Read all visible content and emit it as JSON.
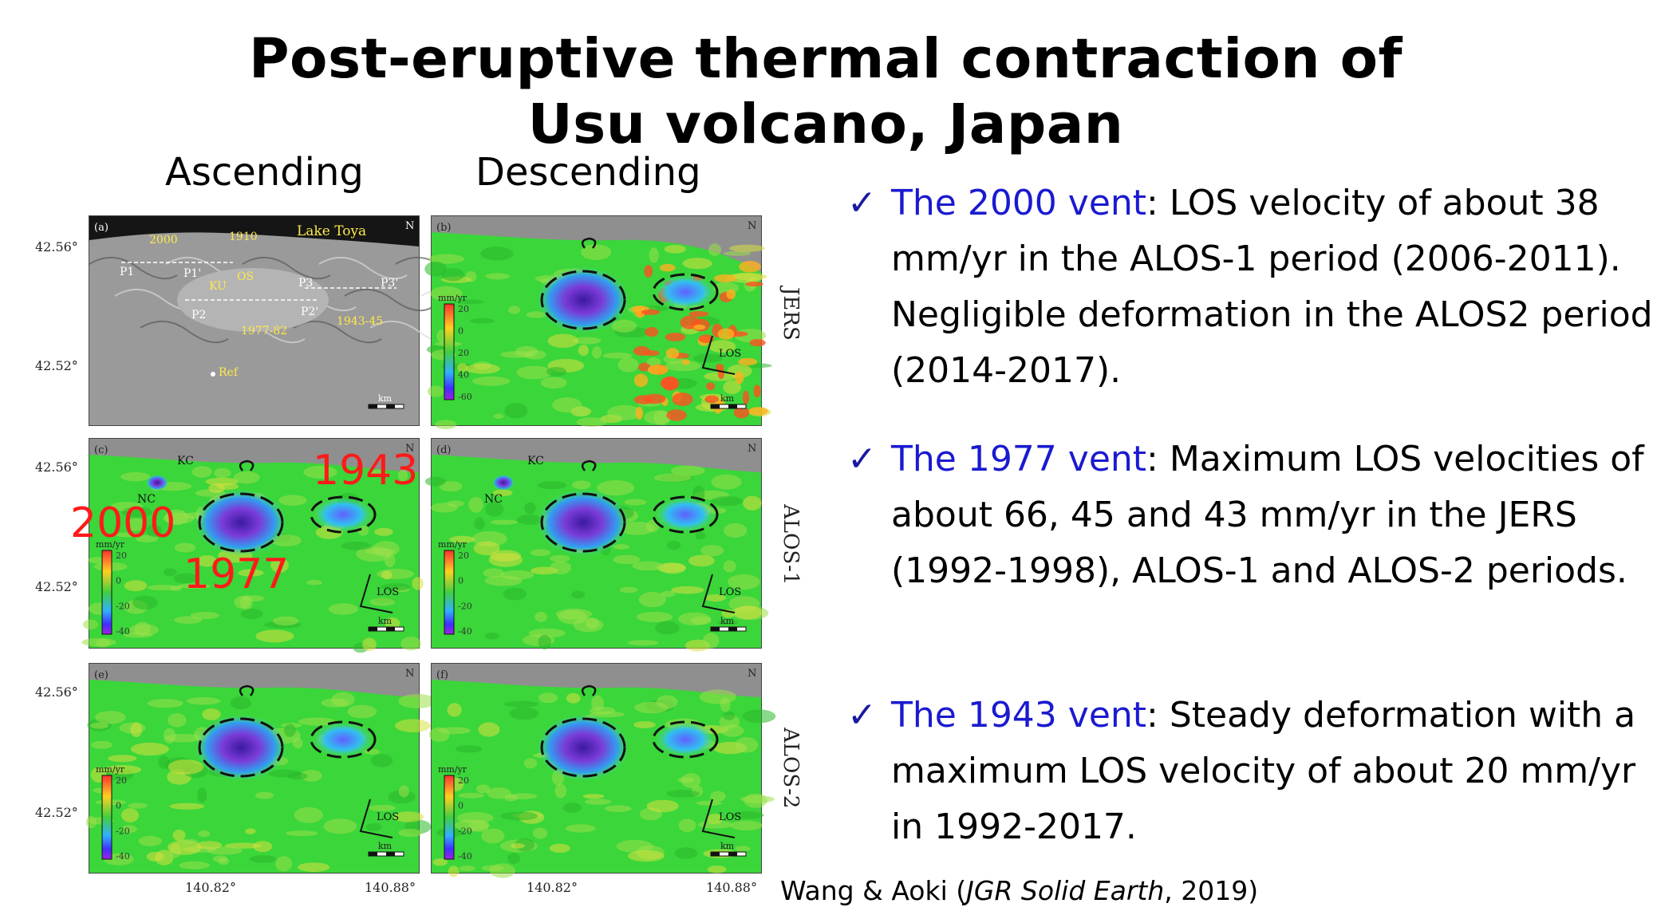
{
  "title": {
    "line1": "Post-eruptive thermal contraction of",
    "line2": "Usu volcano, Japan"
  },
  "columns": {
    "ascending": "Ascending",
    "descending": "Descending"
  },
  "figure": {
    "rows": [
      "JERS",
      "ALOS-1",
      "ALOS-2"
    ],
    "lat_ticks": [
      "42.56°",
      "42.52°"
    ],
    "lon_ticks": [
      "140.82°",
      "140.88°"
    ],
    "panel_letters": [
      "(a)",
      "(b)",
      "(c)",
      "(d)",
      "(e)",
      "(f)"
    ],
    "panel_a_labels": [
      "2000",
      "1910",
      "Lake Toya",
      "P1",
      "P1'",
      "P2",
      "P2'",
      "P3",
      "P3'",
      "KU",
      "OS",
      "1977-82",
      "1943-45",
      "Ref"
    ],
    "kc": "KC",
    "nc": "NC",
    "unit": "mm/yr",
    "scale_values": [
      "20",
      "0",
      "-20",
      "-40"
    ],
    "scale_values_b": [
      "20",
      "0",
      "20",
      "40",
      "-60"
    ],
    "los": "LOS",
    "km": "km",
    "north": "N",
    "colors": {
      "sea": "#8f8f8f",
      "ground": "#3ad63a",
      "uplift": "#e8e030",
      "subside": "#7a3ad8",
      "core": "#3a1aa0"
    }
  },
  "annotations": {
    "a2000": "2000",
    "a1977": "1977",
    "a1943": "1943"
  },
  "bullets": [
    {
      "check": "✓",
      "lead": "The 2000 vent",
      "rest": ": LOS velocity of about 38 mm/yr in the ALOS-1 period (2006-2011). Negligible deformation in the ALOS2 period (2014-2017)."
    },
    {
      "check": "✓",
      "lead": "The 1977 vent",
      "rest": ": Maximum LOS velocities of about 66, 45 and 43 mm/yr in the JERS (1992-1998), ALOS-1 and ALOS-2 periods."
    },
    {
      "check": "✓",
      "lead": "The 1943 vent",
      "rest": ": Steady deformation with a maximum LOS velocity of about 20 mm/yr in 1992-2017."
    }
  ],
  "citation": {
    "authors": "Wang & Aoki (",
    "journal": "JGR Solid Earth",
    "year": ", 2019)"
  }
}
